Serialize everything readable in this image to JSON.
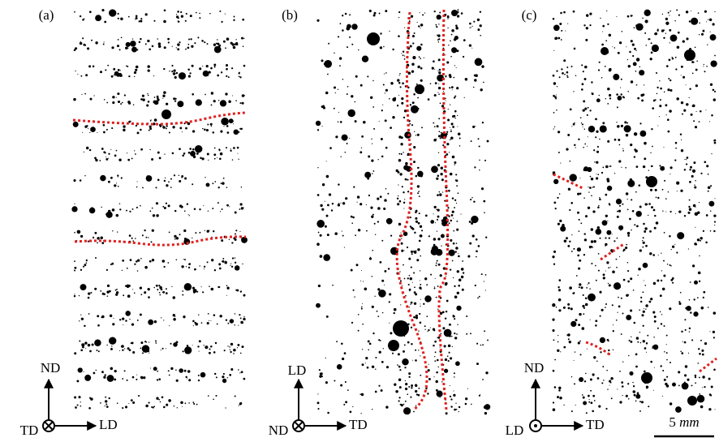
{
  "panels": [
    {
      "label": "(a)",
      "axes": {
        "up": "ND",
        "out": "TD",
        "right": "LD"
      }
    },
    {
      "label": "(b)",
      "axes": {
        "up": "LD",
        "out": "ND",
        "right": "TD"
      }
    },
    {
      "label": "(c)",
      "axes": {
        "up": "ND",
        "out": "LD",
        "right": "TD"
      }
    }
  ],
  "scale_bar": {
    "number": "5",
    "unit": "mm"
  }
}
